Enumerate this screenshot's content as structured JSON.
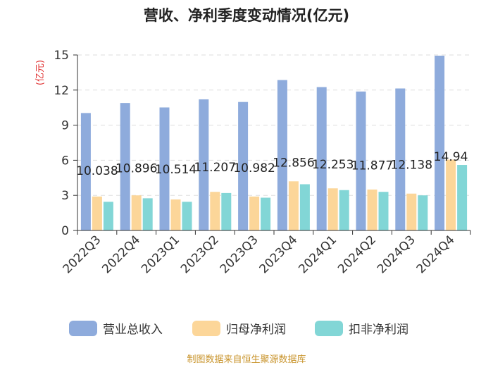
{
  "chart_data": {
    "type": "bar",
    "title": "营收、净利季度变动情况(亿元)",
    "ylabel": "(亿元)",
    "ylim": [
      0,
      15
    ],
    "yticks": [
      0,
      3,
      6,
      9,
      12,
      15
    ],
    "categories": [
      "2022Q3",
      "2022Q4",
      "2023Q1",
      "2023Q2",
      "2023Q3",
      "2023Q4",
      "2024Q1",
      "2024Q2",
      "2024Q3",
      "2024Q4"
    ],
    "series": [
      {
        "name": "营业总收入",
        "color": "#8eabdc",
        "values": [
          10.038,
          10.896,
          10.514,
          11.207,
          10.982,
          12.856,
          12.253,
          11.877,
          12.138,
          14.94
        ],
        "labels": [
          "10.038",
          "10.896",
          "10.514",
          "11.207",
          "10.982",
          "12.856",
          "12.253",
          "11.877",
          "12.138",
          "14.94"
        ]
      },
      {
        "name": "归母净利润",
        "color": "#fcd699",
        "values": [
          2.9,
          3.0,
          2.65,
          3.3,
          2.9,
          4.2,
          3.6,
          3.5,
          3.15,
          6.05
        ]
      },
      {
        "name": "扣非净利润",
        "color": "#82d6d6",
        "values": [
          2.45,
          2.75,
          2.45,
          3.2,
          2.8,
          3.95,
          3.45,
          3.3,
          3.0,
          5.6
        ]
      }
    ],
    "grid": true,
    "legend_position": "bottom"
  },
  "footer": "制图数据来自恒生聚源数据库"
}
